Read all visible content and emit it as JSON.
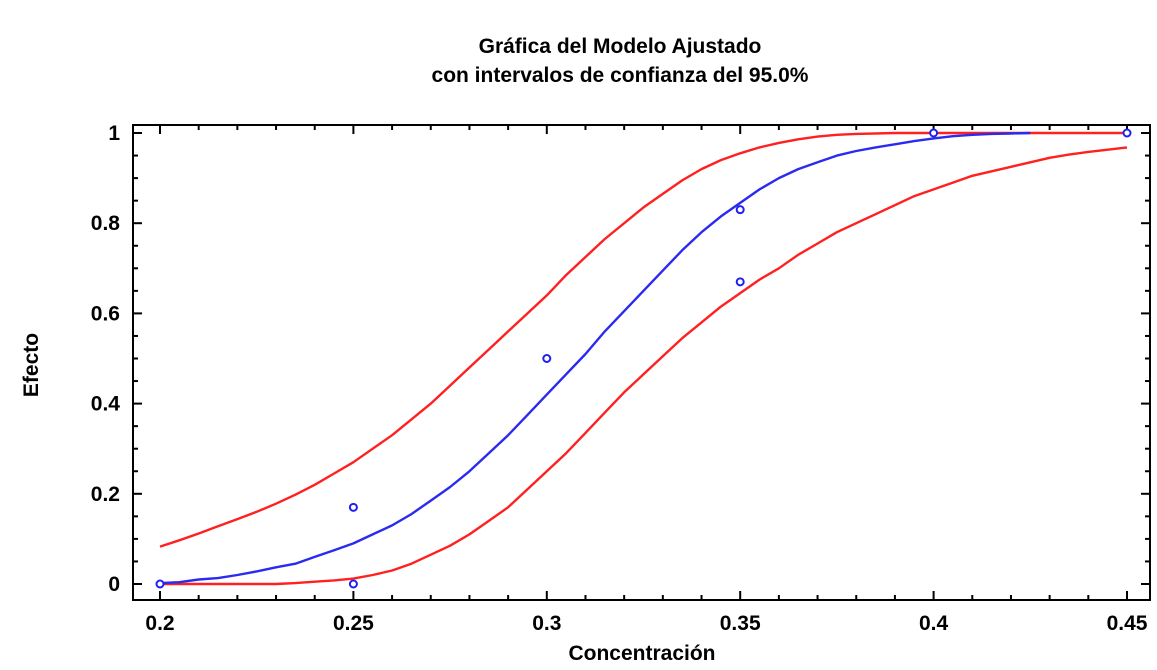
{
  "chart_data": {
    "type": "line",
    "title": "Gráfica del Modelo Ajustado",
    "subtitle": "con intervalos de confianza del 95.0%",
    "xlabel": "Concentración",
    "ylabel": "Efecto",
    "xlim": [
      0.2,
      0.45
    ],
    "ylim": [
      0,
      1
    ],
    "x_ticks": [
      "0.2",
      "0.25",
      "0.3",
      "0.35",
      "0.4",
      "0.45"
    ],
    "y_ticks": [
      "0",
      "0.2",
      "0.4",
      "0.6",
      "0.8",
      "1"
    ],
    "grid": false,
    "legend": "none",
    "colors": {
      "fitted": "#2a2af0",
      "limits": "#ff2020",
      "points": "#1f1ff0",
      "axes": "#000000"
    },
    "series": [
      {
        "role": "fitted",
        "x": [
          0.2,
          0.205,
          0.21,
          0.215,
          0.22,
          0.225,
          0.23,
          0.235,
          0.24,
          0.245,
          0.25,
          0.255,
          0.26,
          0.265,
          0.27,
          0.275,
          0.28,
          0.285,
          0.29,
          0.295,
          0.3,
          0.305,
          0.31,
          0.315,
          0.32,
          0.325,
          0.33,
          0.335,
          0.34,
          0.345,
          0.35,
          0.355,
          0.36,
          0.365,
          0.37,
          0.375,
          0.38,
          0.385,
          0.39,
          0.395,
          0.4,
          0.405,
          0.41,
          0.415,
          0.42,
          0.425
        ],
        "y": [
          0.002,
          0.004,
          0.01,
          0.013,
          0.02,
          0.028,
          0.037,
          0.045,
          0.06,
          0.075,
          0.09,
          0.11,
          0.13,
          0.155,
          0.185,
          0.215,
          0.25,
          0.29,
          0.33,
          0.375,
          0.42,
          0.465,
          0.51,
          0.56,
          0.605,
          0.65,
          0.695,
          0.74,
          0.78,
          0.815,
          0.845,
          0.875,
          0.9,
          0.92,
          0.935,
          0.95,
          0.96,
          0.968,
          0.975,
          0.982,
          0.988,
          0.993,
          0.996,
          0.998,
          0.999,
          1.0
        ]
      },
      {
        "role": "upper-limit",
        "x": [
          0.2,
          0.205,
          0.21,
          0.215,
          0.22,
          0.225,
          0.23,
          0.235,
          0.24,
          0.245,
          0.25,
          0.255,
          0.26,
          0.265,
          0.27,
          0.275,
          0.28,
          0.285,
          0.29,
          0.295,
          0.3,
          0.305,
          0.31,
          0.315,
          0.32,
          0.325,
          0.33,
          0.335,
          0.34,
          0.345,
          0.35,
          0.355,
          0.36,
          0.365,
          0.37,
          0.375,
          0.38,
          0.39,
          0.4,
          0.41,
          0.42,
          0.43,
          0.44,
          0.45
        ],
        "y": [
          0.083,
          0.097,
          0.112,
          0.128,
          0.144,
          0.16,
          0.178,
          0.198,
          0.22,
          0.245,
          0.27,
          0.3,
          0.33,
          0.365,
          0.4,
          0.44,
          0.48,
          0.52,
          0.56,
          0.6,
          0.64,
          0.685,
          0.725,
          0.765,
          0.8,
          0.835,
          0.865,
          0.895,
          0.92,
          0.94,
          0.955,
          0.968,
          0.978,
          0.986,
          0.992,
          0.996,
          0.998,
          1.0,
          1.0,
          1.0,
          1.0,
          1.0,
          1.0,
          1.0
        ]
      },
      {
        "role": "lower-limit",
        "x": [
          0.2,
          0.21,
          0.22,
          0.23,
          0.235,
          0.24,
          0.245,
          0.25,
          0.255,
          0.26,
          0.265,
          0.27,
          0.275,
          0.28,
          0.285,
          0.29,
          0.295,
          0.3,
          0.305,
          0.31,
          0.315,
          0.32,
          0.325,
          0.33,
          0.335,
          0.34,
          0.345,
          0.35,
          0.355,
          0.36,
          0.365,
          0.37,
          0.375,
          0.38,
          0.385,
          0.39,
          0.395,
          0.4,
          0.405,
          0.41,
          0.415,
          0.42,
          0.425,
          0.43,
          0.435,
          0.44,
          0.445,
          0.45
        ],
        "y": [
          0.0,
          0.0,
          0.0,
          0.0,
          0.002,
          0.005,
          0.008,
          0.012,
          0.02,
          0.03,
          0.045,
          0.065,
          0.085,
          0.11,
          0.14,
          0.17,
          0.21,
          0.25,
          0.29,
          0.335,
          0.38,
          0.425,
          0.465,
          0.505,
          0.545,
          0.58,
          0.615,
          0.645,
          0.675,
          0.7,
          0.73,
          0.755,
          0.78,
          0.8,
          0.82,
          0.84,
          0.86,
          0.875,
          0.89,
          0.905,
          0.915,
          0.925,
          0.935,
          0.945,
          0.952,
          0.958,
          0.963,
          0.968
        ]
      }
    ],
    "points": {
      "x": [
        0.2,
        0.25,
        0.25,
        0.3,
        0.35,
        0.35,
        0.4,
        0.45
      ],
      "y": [
        0.0,
        0.0,
        0.17,
        0.5,
        0.83,
        0.67,
        1.0,
        1.0
      ]
    }
  }
}
